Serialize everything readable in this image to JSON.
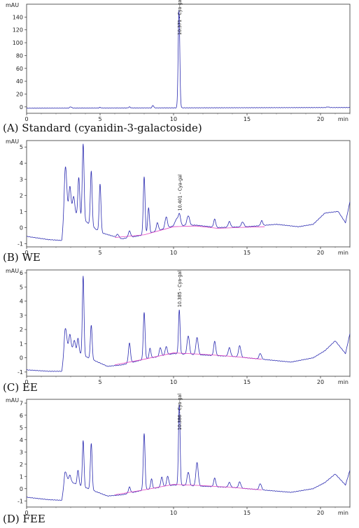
{
  "chart_data": [
    {
      "type": "line",
      "caption": "(A) Standard (cyanidin-3-galactoside)",
      "ylabel": "mAU",
      "xunit": "min",
      "xlim": [
        0,
        22
      ],
      "ylim": [
        -10,
        160
      ],
      "yticks": [
        0,
        20,
        40,
        60,
        80,
        100,
        120,
        140
      ],
      "xticks": [
        0,
        5,
        10,
        15,
        20
      ],
      "xtick_labels": [
        "0",
        "5",
        "10",
        "15",
        "20"
      ],
      "baseline": -2,
      "series": [
        {
          "baseline": [
            [
              0,
              -2
            ],
            [
              22,
              -1
            ]
          ],
          "peaks": [
            [
              3.0,
              2.0,
              0.06
            ],
            [
              5.0,
              1.0,
              0.05
            ],
            [
              7.0,
              1.5,
              0.06
            ],
            [
              8.6,
              4.0,
              0.05
            ],
            [
              10.37,
              152,
              0.055
            ],
            [
              20.5,
              1,
              0.08
            ]
          ]
        }
      ],
      "peak_labels": [
        {
          "x": 10.37,
          "text": "10.371 - Cya-gal"
        }
      ],
      "integration": []
    },
    {
      "type": "line",
      "caption": "(B) WE",
      "ylabel": "mAU",
      "xunit": "min",
      "xlim": [
        0,
        22
      ],
      "ylim": [
        -1.2,
        5.4
      ],
      "yticks": [
        -1,
        0,
        1,
        2,
        3,
        4,
        5
      ],
      "xticks": [
        0,
        5,
        10,
        15,
        20
      ],
      "xtick_labels": [
        "0",
        "5",
        "10",
        "15",
        "20"
      ],
      "series": [
        {
          "baseline": [
            [
              0,
              -0.55
            ],
            [
              1.5,
              -0.75
            ],
            [
              2.4,
              -0.8
            ],
            [
              2.6,
              1.2
            ],
            [
              3.3,
              0.9
            ],
            [
              4.0,
              0.4
            ],
            [
              5.0,
              -0.3
            ],
            [
              6.5,
              -0.7
            ],
            [
              8.0,
              -0.45
            ],
            [
              10.0,
              0.1
            ],
            [
              11.5,
              0.15
            ],
            [
              13.0,
              0.0
            ],
            [
              15.0,
              0.05
            ],
            [
              17.0,
              0.2
            ],
            [
              18.5,
              0.05
            ],
            [
              19.5,
              0.2
            ],
            [
              20.3,
              0.9
            ],
            [
              21.2,
              1.0
            ],
            [
              21.7,
              0.3
            ],
            [
              22,
              1.6
            ]
          ],
          "peaks": [
            [
              2.65,
              2.6,
              0.08
            ],
            [
              2.95,
              1.5,
              0.07
            ],
            [
              3.2,
              1.0,
              0.07
            ],
            [
              3.55,
              2.4,
              0.06
            ],
            [
              3.85,
              4.7,
              0.06
            ],
            [
              4.4,
              3.4,
              0.06
            ],
            [
              5.0,
              3.0,
              0.06
            ],
            [
              6.2,
              0.2,
              0.08
            ],
            [
              7.0,
              0.4,
              0.08
            ],
            [
              8.0,
              3.6,
              0.06
            ],
            [
              8.3,
              1.6,
              0.06
            ],
            [
              8.9,
              0.5,
              0.07
            ],
            [
              9.5,
              0.7,
              0.08
            ],
            [
              10.2,
              0.4,
              0.1
            ],
            [
              10.4,
              0.7,
              0.08
            ],
            [
              11.0,
              0.6,
              0.09
            ],
            [
              12.8,
              0.5,
              0.07
            ],
            [
              13.8,
              0.35,
              0.08
            ],
            [
              14.7,
              0.3,
              0.09
            ],
            [
              16.0,
              0.3,
              0.07
            ]
          ]
        }
      ],
      "peak_labels": [
        {
          "x": 10.4,
          "text": "10.401 - Cya-gal"
        }
      ],
      "integration": [
        [
          6.0,
          -0.62
        ],
        [
          8.0,
          -0.45
        ],
        [
          10.0,
          0.05
        ],
        [
          11.5,
          0.1
        ],
        [
          13.0,
          -0.05
        ],
        [
          15.0,
          0.02
        ],
        [
          16.2,
          0.05
        ]
      ]
    },
    {
      "type": "line",
      "caption": "(C) EE",
      "ylabel": "mAU",
      "xunit": "min",
      "xlim": [
        0,
        22
      ],
      "ylim": [
        -1.3,
        6.2
      ],
      "yticks": [
        -1,
        0,
        1,
        2,
        3,
        4,
        5,
        6
      ],
      "xticks": [
        0,
        5,
        10,
        15,
        20
      ],
      "xtick_labels": [
        "0",
        "5",
        "10",
        "15",
        "20"
      ],
      "series": [
        {
          "baseline": [
            [
              0,
              -0.85
            ],
            [
              1.5,
              -0.95
            ],
            [
              2.4,
              -0.95
            ],
            [
              2.6,
              0.8
            ],
            [
              3.3,
              0.5
            ],
            [
              4.2,
              0.0
            ],
            [
              5.5,
              -0.6
            ],
            [
              6.5,
              -0.5
            ],
            [
              8.0,
              -0.1
            ],
            [
              10.0,
              0.3
            ],
            [
              12.0,
              0.2
            ],
            [
              14.0,
              0.1
            ],
            [
              16.0,
              -0.1
            ],
            [
              18.0,
              -0.3
            ],
            [
              19.5,
              0.0
            ],
            [
              20.3,
              0.5
            ],
            [
              21.0,
              1.2
            ],
            [
              21.7,
              0.3
            ],
            [
              22,
              1.7
            ]
          ],
          "peaks": [
            [
              2.65,
              1.3,
              0.08
            ],
            [
              2.95,
              1.0,
              0.07
            ],
            [
              3.25,
              0.7,
              0.07
            ],
            [
              3.5,
              1.0,
              0.06
            ],
            [
              3.85,
              5.6,
              0.055
            ],
            [
              4.4,
              2.4,
              0.06
            ],
            [
              7.0,
              1.4,
              0.07
            ],
            [
              8.0,
              3.3,
              0.06
            ],
            [
              8.4,
              0.7,
              0.06
            ],
            [
              9.1,
              0.6,
              0.07
            ],
            [
              9.5,
              0.6,
              0.07
            ],
            [
              10.39,
              3.1,
              0.055
            ],
            [
              11.0,
              1.3,
              0.08
            ],
            [
              11.6,
              1.2,
              0.08
            ],
            [
              12.8,
              1.0,
              0.07
            ],
            [
              13.8,
              0.6,
              0.08
            ],
            [
              14.5,
              0.8,
              0.08
            ],
            [
              15.9,
              0.4,
              0.08
            ]
          ]
        }
      ],
      "peak_labels": [
        {
          "x": 10.39,
          "text": "10.385 - Cya-gal"
        }
      ],
      "integration": [
        [
          6.0,
          -0.5
        ],
        [
          8.0,
          -0.1
        ],
        [
          10.0,
          0.35
        ],
        [
          12.0,
          0.25
        ],
        [
          14.0,
          0.1
        ],
        [
          16.0,
          -0.1
        ]
      ]
    },
    {
      "type": "line",
      "caption": "(D) FEE",
      "ylabel": "mAU",
      "xunit": "min",
      "xlim": [
        0,
        22
      ],
      "ylim": [
        -1.5,
        7.3
      ],
      "yticks": [
        -1,
        0,
        1,
        2,
        3,
        4,
        5,
        6,
        7
      ],
      "xticks": [
        0,
        5,
        10,
        15,
        20
      ],
      "xtick_labels": [
        "0",
        "",
        "10",
        "15",
        "20"
      ],
      "series": [
        {
          "baseline": [
            [
              0,
              -0.7
            ],
            [
              1.5,
              -0.9
            ],
            [
              2.4,
              -0.95
            ],
            [
              2.6,
              0.8
            ],
            [
              3.3,
              0.4
            ],
            [
              4.2,
              0.0
            ],
            [
              5.5,
              -0.6
            ],
            [
              6.5,
              -0.5
            ],
            [
              8.0,
              -0.1
            ],
            [
              10.0,
              0.3
            ],
            [
              12.0,
              0.2
            ],
            [
              14.0,
              0.1
            ],
            [
              16.0,
              -0.1
            ],
            [
              18.0,
              -0.3
            ],
            [
              19.5,
              0.0
            ],
            [
              20.3,
              0.5
            ],
            [
              21.0,
              1.2
            ],
            [
              21.7,
              0.3
            ],
            [
              22,
              1.5
            ]
          ],
          "peaks": [
            [
              2.65,
              0.6,
              0.08
            ],
            [
              2.95,
              0.5,
              0.07
            ],
            [
              3.5,
              1.2,
              0.06
            ],
            [
              3.85,
              3.8,
              0.055
            ],
            [
              4.4,
              3.8,
              0.06
            ],
            [
              7.0,
              0.5,
              0.07
            ],
            [
              8.0,
              4.6,
              0.06
            ],
            [
              8.5,
              0.8,
              0.06
            ],
            [
              9.2,
              0.8,
              0.07
            ],
            [
              9.6,
              0.8,
              0.07
            ],
            [
              10.39,
              6.6,
              0.055
            ],
            [
              11.0,
              1.1,
              0.08
            ],
            [
              11.6,
              1.9,
              0.08
            ],
            [
              12.8,
              0.7,
              0.07
            ],
            [
              13.8,
              0.4,
              0.08
            ],
            [
              14.5,
              0.5,
              0.08
            ],
            [
              15.9,
              0.5,
              0.08
            ]
          ]
        }
      ],
      "peak_labels": [
        {
          "x": 10.39,
          "text": "10.386 - Cya-gal"
        }
      ],
      "integration": [
        [
          6.0,
          -0.5
        ],
        [
          8.0,
          -0.1
        ],
        [
          10.0,
          0.35
        ],
        [
          12.0,
          0.25
        ],
        [
          14.0,
          0.1
        ],
        [
          16.0,
          -0.1
        ]
      ]
    }
  ]
}
